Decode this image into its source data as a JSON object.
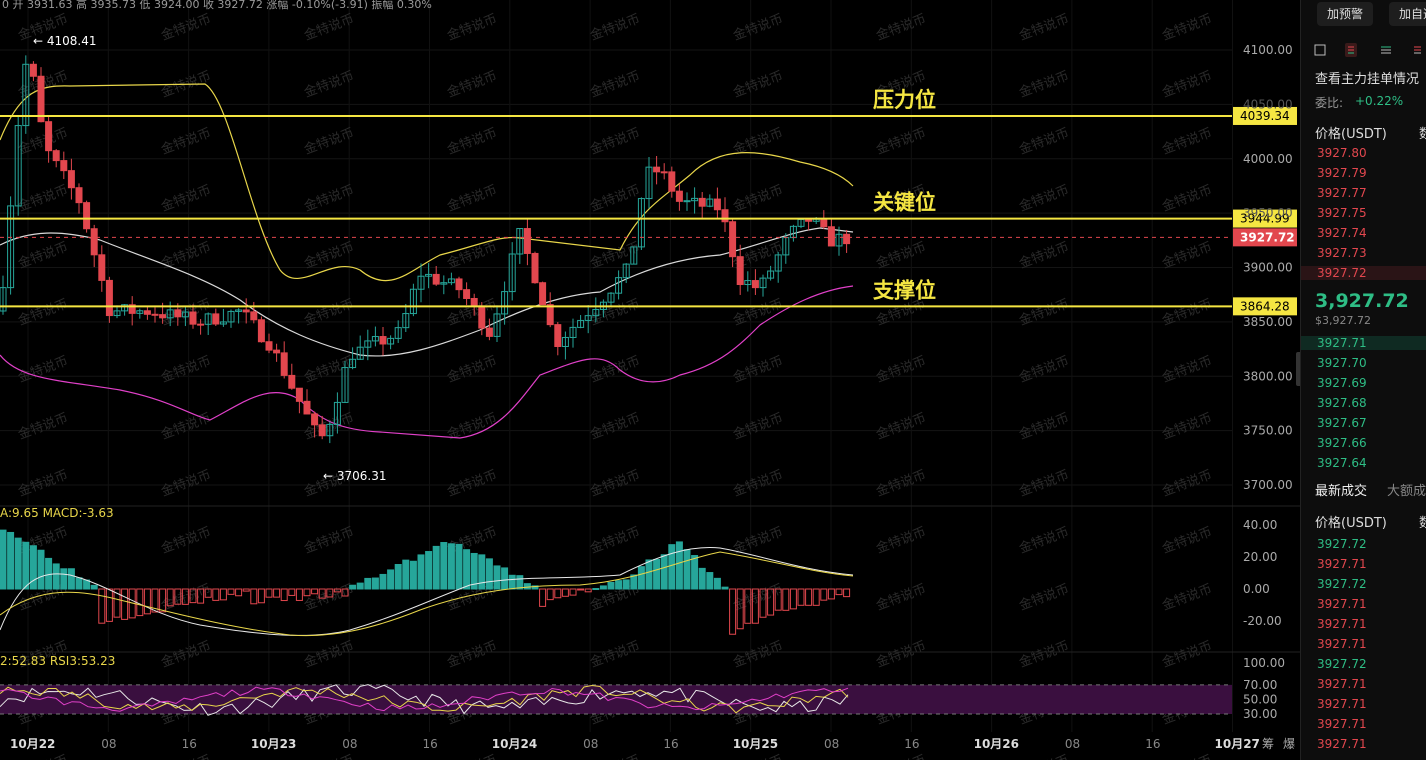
{
  "header": {
    "ohlc_text": "0 开 3931.63 高 3935.73 低 3924.00 收 3927.72 涨幅 -0.10%(-3.91) 振幅 0.30%"
  },
  "chart": {
    "watermark": "金特说币",
    "price_ticks": [
      "4100.00",
      "4050.00",
      "4000.00",
      "3950.00",
      "3900.00",
      "3850.00",
      "3800.00",
      "3750.00",
      "3700.00"
    ],
    "high_marker": "← 4108.41",
    "low_marker": "← 3706.31",
    "levels": {
      "resistance": {
        "label": "压力位",
        "value": "4039.34"
      },
      "key": {
        "label": "关键位",
        "value": "3944.99"
      },
      "support": {
        "label": "支撑位",
        "value": "3864.28"
      }
    },
    "current_price_tag": "3927.72",
    "macd_header": "A:9.65  MACD:-3.63",
    "macd_ticks": [
      "40.00",
      "20.00",
      "0.00",
      "-20.00"
    ],
    "rsi_header": "2:52.83  RSI3:53.23",
    "rsi_ticks": [
      "100.00",
      "70.00",
      "50.00",
      "30.00"
    ],
    "time_labels": [
      {
        "text": "10月22",
        "bold": true
      },
      {
        "text": "08",
        "bold": false
      },
      {
        "text": "16",
        "bold": false
      },
      {
        "text": "10月23",
        "bold": true
      },
      {
        "text": "08",
        "bold": false
      },
      {
        "text": "16",
        "bold": false
      },
      {
        "text": "10月24",
        "bold": true
      },
      {
        "text": "08",
        "bold": false
      },
      {
        "text": "16",
        "bold": false
      },
      {
        "text": "10月25",
        "bold": true
      },
      {
        "text": "08",
        "bold": false
      },
      {
        "text": "16",
        "bold": false
      },
      {
        "text": "10月26",
        "bold": true
      },
      {
        "text": "08",
        "bold": false
      },
      {
        "text": "16",
        "bold": false
      },
      {
        "text": "10月27",
        "bold": true
      }
    ],
    "bottom_right_labels": [
      "筹",
      "爆"
    ],
    "colors": {
      "up": "#26a69a",
      "down": "#e2474e",
      "level": "#f5e642",
      "boll_mid": "#d9d9d9",
      "boll_up": "#e8d64a",
      "boll_low": "#e040c8"
    }
  },
  "panel": {
    "buttons": [
      "加预警",
      "加自选"
    ],
    "icons": [
      "chart-icon",
      "candle-icon",
      "list-icon",
      "layout-icon"
    ],
    "orderbook_title": "查看主力挂单情况",
    "ratio_label": "委比:",
    "ratio_value": "+0.22%",
    "col_price": "价格(USDT)",
    "col_qty": "数",
    "asks": [
      "3927.80",
      "3927.79",
      "3927.77",
      "3927.75",
      "3927.74",
      "3927.73",
      "3927.72"
    ],
    "last_price": "3,927.72",
    "last_price_usd": "$3,927.72",
    "bids": [
      "3927.71",
      "3927.70",
      "3927.69",
      "3927.68",
      "3927.67",
      "3927.66",
      "3927.64"
    ],
    "trades_tab_active": "最新成交",
    "trades_tab_other": "大额成",
    "trades": [
      {
        "p": "3927.72",
        "side": "buy"
      },
      {
        "p": "3927.71",
        "side": "sell"
      },
      {
        "p": "3927.72",
        "side": "buy"
      },
      {
        "p": "3927.71",
        "side": "sell"
      },
      {
        "p": "3927.71",
        "side": "sell"
      },
      {
        "p": "3927.71",
        "side": "sell"
      },
      {
        "p": "3927.72",
        "side": "buy"
      },
      {
        "p": "3927.71",
        "side": "sell"
      },
      {
        "p": "3927.71",
        "side": "sell"
      },
      {
        "p": "3927.71",
        "side": "sell"
      },
      {
        "p": "3927.71",
        "side": "sell"
      }
    ]
  }
}
